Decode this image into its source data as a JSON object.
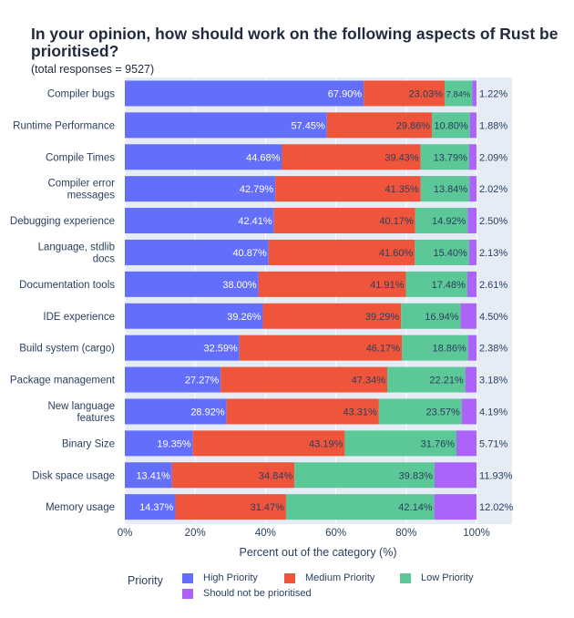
{
  "chart_data": {
    "type": "bar",
    "orientation": "horizontal",
    "stacked": true,
    "title": "In your opinion, how should work on the following aspects of Rust be prioritised?",
    "subtitle": "(total responses = 9527)",
    "xlabel": "Percent out of the category (%)",
    "ylabel": "",
    "xlim": [
      0,
      100
    ],
    "xticks": [
      "0%",
      "20%",
      "40%",
      "60%",
      "80%",
      "100%"
    ],
    "legend_title": "Priority",
    "legend_position": "bottom",
    "categories": [
      [
        "Compiler bugs"
      ],
      [
        "Runtime Performance"
      ],
      [
        "Compile Times"
      ],
      [
        "Compiler error",
        "messages"
      ],
      [
        "Debugging experience"
      ],
      [
        "Language, stdlib",
        "docs"
      ],
      [
        "Documentation tools"
      ],
      [
        "IDE experience"
      ],
      [
        "Build system (cargo)"
      ],
      [
        "Package management"
      ],
      [
        "New language",
        "features"
      ],
      [
        "Binary Size"
      ],
      [
        "Disk space usage"
      ],
      [
        "Memory usage"
      ]
    ],
    "series": [
      {
        "name": "High Priority",
        "color": "#636efa",
        "label_color": "#ffffff",
        "values": [
          67.9,
          57.45,
          44.68,
          42.79,
          42.41,
          40.87,
          38.0,
          39.26,
          32.59,
          27.27,
          28.92,
          19.35,
          13.41,
          14.37
        ],
        "labels": [
          "67.90%",
          "57.45%",
          "44.68%",
          "42.79%",
          "42.41%",
          "40.87%",
          "38.00%",
          "39.26%",
          "32.59%",
          "27.27%",
          "28.92%",
          "19.35%",
          "13.41%",
          "14.37%"
        ]
      },
      {
        "name": "Medium Priority",
        "color": "#ef553b",
        "label_color": "#2a3f5f",
        "values": [
          23.03,
          29.86,
          39.43,
          41.35,
          40.17,
          41.6,
          41.91,
          39.29,
          46.17,
          47.34,
          43.31,
          43.19,
          34.84,
          31.47
        ],
        "labels": [
          "23.03%",
          "29.86%",
          "39.43%",
          "41.35%",
          "40.17%",
          "41.60%",
          "41.91%",
          "39.29%",
          "46.17%",
          "47.34%",
          "43.31%",
          "43.19%",
          "34.84%",
          "31.47%"
        ]
      },
      {
        "name": "Low Priority",
        "color": "#5cc797",
        "label_color": "#2a3f5f",
        "values": [
          7.84,
          10.8,
          13.79,
          13.84,
          14.92,
          15.4,
          17.48,
          16.94,
          18.86,
          22.21,
          23.57,
          31.76,
          39.83,
          42.14
        ],
        "labels": [
          "7.84%",
          "10.80%",
          "13.79%",
          "13.84%",
          "14.92%",
          "15.40%",
          "17.48%",
          "16.94%",
          "18.86%",
          "22.21%",
          "23.57%",
          "31.76%",
          "39.83%",
          "42.14%"
        ]
      },
      {
        "name": "Should not be prioritised",
        "color": "#ab63fa",
        "label_color": "#2a3f5f",
        "values": [
          1.22,
          1.88,
          2.09,
          2.02,
          2.5,
          2.13,
          2.61,
          4.5,
          2.38,
          3.18,
          4.19,
          5.71,
          11.93,
          12.02
        ],
        "labels": [
          "1.22%",
          "1.88%",
          "2.09%",
          "2.02%",
          "2.50%",
          "2.13%",
          "2.61%",
          "4.50%",
          "2.38%",
          "3.18%",
          "4.19%",
          "5.71%",
          "11.93%",
          "12.02%"
        ]
      }
    ]
  }
}
